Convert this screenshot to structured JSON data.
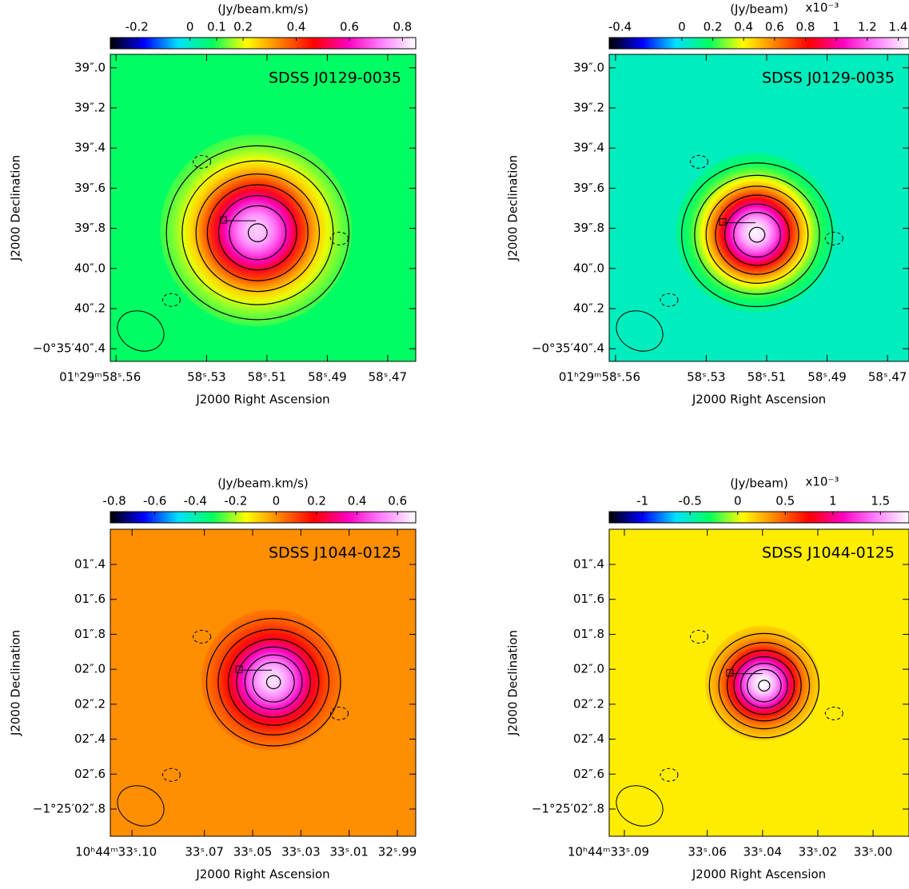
{
  "chart_data": [
    {
      "type": "image",
      "title": "SDSS J0129-0035",
      "colorbar_label": "(Jy/beam.km/s)",
      "clim": [
        -0.3,
        0.85
      ],
      "cticks": [
        -0.2,
        0,
        0.1,
        0.2,
        0.4,
        0.6,
        0.8
      ],
      "colormap": [
        "#000000",
        "#0000ff",
        "#00e0ff",
        "#00ff60",
        "#ffff00",
        "#ff8000",
        "#ff0000",
        "#ff00c0",
        "#ff80ff",
        "#ffffff"
      ],
      "xlabel": "J2000 Right Ascension",
      "ylabel": "J2000 Declination",
      "xlim": [
        58.5619,
        58.4607
      ],
      "xticks": [
        {
          "value": 58.56,
          "label": "01ʰ29ᵐ58ˢ.56"
        },
        {
          "value": 58.53,
          "label": "58ˢ.53"
        },
        {
          "value": 58.51,
          "label": "58ˢ.51"
        },
        {
          "value": 58.49,
          "label": "58ˢ.49"
        },
        {
          "value": 58.47,
          "label": "58ˢ.47"
        }
      ],
      "ylim": [
        38.933,
        40.463
      ],
      "yticks": [
        {
          "value": 39.0,
          "label": "39″.0"
        },
        {
          "value": 39.2,
          "label": "39″.2"
        },
        {
          "value": 39.4,
          "label": "39″.4"
        },
        {
          "value": 39.6,
          "label": "39″.6"
        },
        {
          "value": 39.8,
          "label": "39″.8"
        },
        {
          "value": 40.0,
          "label": "40″.0"
        },
        {
          "value": 40.2,
          "label": "40″.2"
        },
        {
          "value": 40.4,
          "label": "−0°35′40″.4"
        }
      ],
      "background": 0.08,
      "peak": {
        "x": 58.5136,
        "y": 39.81,
        "value": 0.8
      }
    },
    {
      "type": "image",
      "title": "SDSS J0129-0035",
      "colorbar_label": "(Jy/beam)",
      "colorbar_multiplier": "x10⁻³",
      "clim": [
        -0.47,
        1.47
      ],
      "cticks": [
        -0.4,
        0,
        0.2,
        0.4,
        0.6,
        0.8,
        1,
        1.2,
        1.4
      ],
      "colormap": [
        "#000000",
        "#0000ff",
        "#00e0ff",
        "#00ff60",
        "#ffff00",
        "#ff8000",
        "#ff0000",
        "#ff00c0",
        "#ff80ff",
        "#ffffff"
      ],
      "xlabel": "J2000 Right Ascension",
      "ylabel": "J2000 Declination",
      "xlim": [
        58.5621,
        58.4629
      ],
      "xticks": [
        {
          "value": 58.56,
          "label": "01ʰ29ᵐ58ˢ.56"
        },
        {
          "value": 58.53,
          "label": "58ˢ.53"
        },
        {
          "value": 58.51,
          "label": "58ˢ.51"
        },
        {
          "value": 58.49,
          "label": "58ˢ.49"
        },
        {
          "value": 58.47,
          "label": "58ˢ.47"
        }
      ],
      "ylim": [
        38.933,
        40.463
      ],
      "yticks": [
        {
          "value": 39.0,
          "label": "39″.0"
        },
        {
          "value": 39.2,
          "label": "39″.2"
        },
        {
          "value": 39.4,
          "label": "39″.4"
        },
        {
          "value": 39.6,
          "label": "39″.6"
        },
        {
          "value": 39.8,
          "label": "39″.8"
        },
        {
          "value": 40.0,
          "label": "40″.0"
        },
        {
          "value": 40.2,
          "label": "40″.2"
        },
        {
          "value": 40.4,
          "label": "−0°35′40″.4"
        }
      ],
      "background": 0.05,
      "peak": {
        "x": 58.5137,
        "y": 39.82,
        "value": 1.45
      }
    },
    {
      "type": "image",
      "title": "SDSS J1044-0125",
      "colorbar_label": "(Jy/beam.km/s)",
      "clim": [
        -0.82,
        0.69
      ],
      "cticks": [
        -0.8,
        -0.6,
        -0.4,
        -0.2,
        0,
        0.2,
        0.4,
        0.6
      ],
      "colormap": [
        "#000000",
        "#0000ff",
        "#00e0ff",
        "#00ff60",
        "#ffff00",
        "#ff8000",
        "#ff0000",
        "#ff00c0",
        "#ff80ff",
        "#ffffff"
      ],
      "xlabel": "J2000 Right Ascension",
      "ylabel": "J2000 Declination",
      "xlim": [
        33.109,
        32.9824
      ],
      "xticks": [
        {
          "value": 33.1,
          "label": "10ʰ44ᵐ33ˢ.10"
        },
        {
          "value": 33.07,
          "label": "33ˢ.07"
        },
        {
          "value": 33.05,
          "label": "33ˢ.05"
        },
        {
          "value": 33.03,
          "label": "33ˢ.03"
        },
        {
          "value": 33.01,
          "label": "33ˢ.01"
        },
        {
          "value": 32.99,
          "label": "32ˢ.99"
        }
      ],
      "ylim": [
        1.1986,
        2.9556
      ],
      "yticks": [
        {
          "value": 1.4,
          "label": "01″.4"
        },
        {
          "value": 1.6,
          "label": "01″.6"
        },
        {
          "value": 1.8,
          "label": "01″.8"
        },
        {
          "value": 2.0,
          "label": "02″.0"
        },
        {
          "value": 2.2,
          "label": "02″.2"
        },
        {
          "value": 2.4,
          "label": "02″.4"
        },
        {
          "value": 2.6,
          "label": "02″.6"
        },
        {
          "value": 2.8,
          "label": "−1°25′02″.8"
        }
      ],
      "background": 0.0,
      "peak": {
        "x": 33.042,
        "y": 2.06,
        "value": 0.65
      }
    },
    {
      "type": "image",
      "title": "SDSS J1044-0125",
      "colorbar_label": "(Jy/beam)",
      "colorbar_multiplier": "x10⁻³",
      "clim": [
        -1.35,
        1.8
      ],
      "cticks": [
        -1,
        -0.5,
        0,
        0.5,
        1,
        1.5
      ],
      "colormap": [
        "#000000",
        "#0000ff",
        "#00e0ff",
        "#00ff60",
        "#ffff00",
        "#ff8000",
        "#ff0000",
        "#ff00c0",
        "#ff80ff",
        "#ffffff"
      ],
      "xlabel": "J2000 Right Ascension",
      "ylabel": "J2000 Declination",
      "xlim": [
        33.0955,
        32.987
      ],
      "xticks": [
        {
          "value": 33.09,
          "label": "10ʰ44ᵐ33ˢ.09"
        },
        {
          "value": 33.06,
          "label": "33ˢ.06"
        },
        {
          "value": 33.04,
          "label": "33ˢ.04"
        },
        {
          "value": 33.02,
          "label": "33ˢ.02"
        },
        {
          "value": 33.0,
          "label": "33ˢ.00"
        }
      ],
      "ylim": [
        1.1986,
        2.9556
      ],
      "yticks": [
        {
          "value": 1.4,
          "label": "01″.4"
        },
        {
          "value": 1.6,
          "label": "01″.6"
        },
        {
          "value": 1.8,
          "label": "01″.8"
        },
        {
          "value": 2.0,
          "label": "02″.0"
        },
        {
          "value": 2.2,
          "label": "02″.2"
        },
        {
          "value": 2.4,
          "label": "02″.4"
        },
        {
          "value": 2.6,
          "label": "02″.6"
        },
        {
          "value": 2.8,
          "label": "−1°25′02″.8"
        }
      ],
      "background": 0.1,
      "peak": {
        "x": 33.04,
        "y": 2.08,
        "value": 1.8
      }
    }
  ]
}
